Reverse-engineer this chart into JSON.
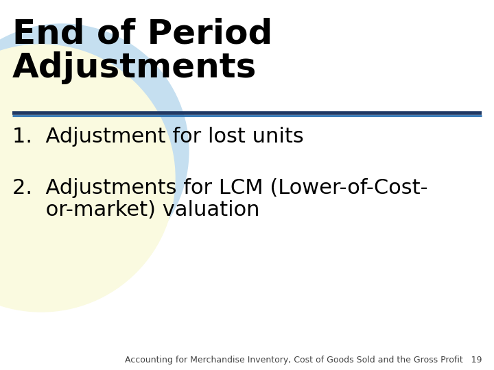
{
  "title_line1": "End of Period",
  "title_line2": "Adjustments",
  "item1": "1.  Adjustment for lost units",
  "item2_line1": "2.  Adjustments for LCM (Lower-of-Cost-",
  "item2_line2": "     or-market) valuation",
  "footer": "Accounting for Merchandise Inventory, Cost of Goods Sold and the Gross Profit   19",
  "bg_color": "#ffffff",
  "title_color": "#000000",
  "body_color": "#000000",
  "footer_color": "#444444",
  "separator_color1": "#1f3864",
  "separator_color2": "#2e74b5",
  "circle_color_blue": "#c5dff0",
  "circle_color_yellow": "#fafae0",
  "title_fontsize": 36,
  "body_fontsize": 22,
  "footer_fontsize": 9
}
